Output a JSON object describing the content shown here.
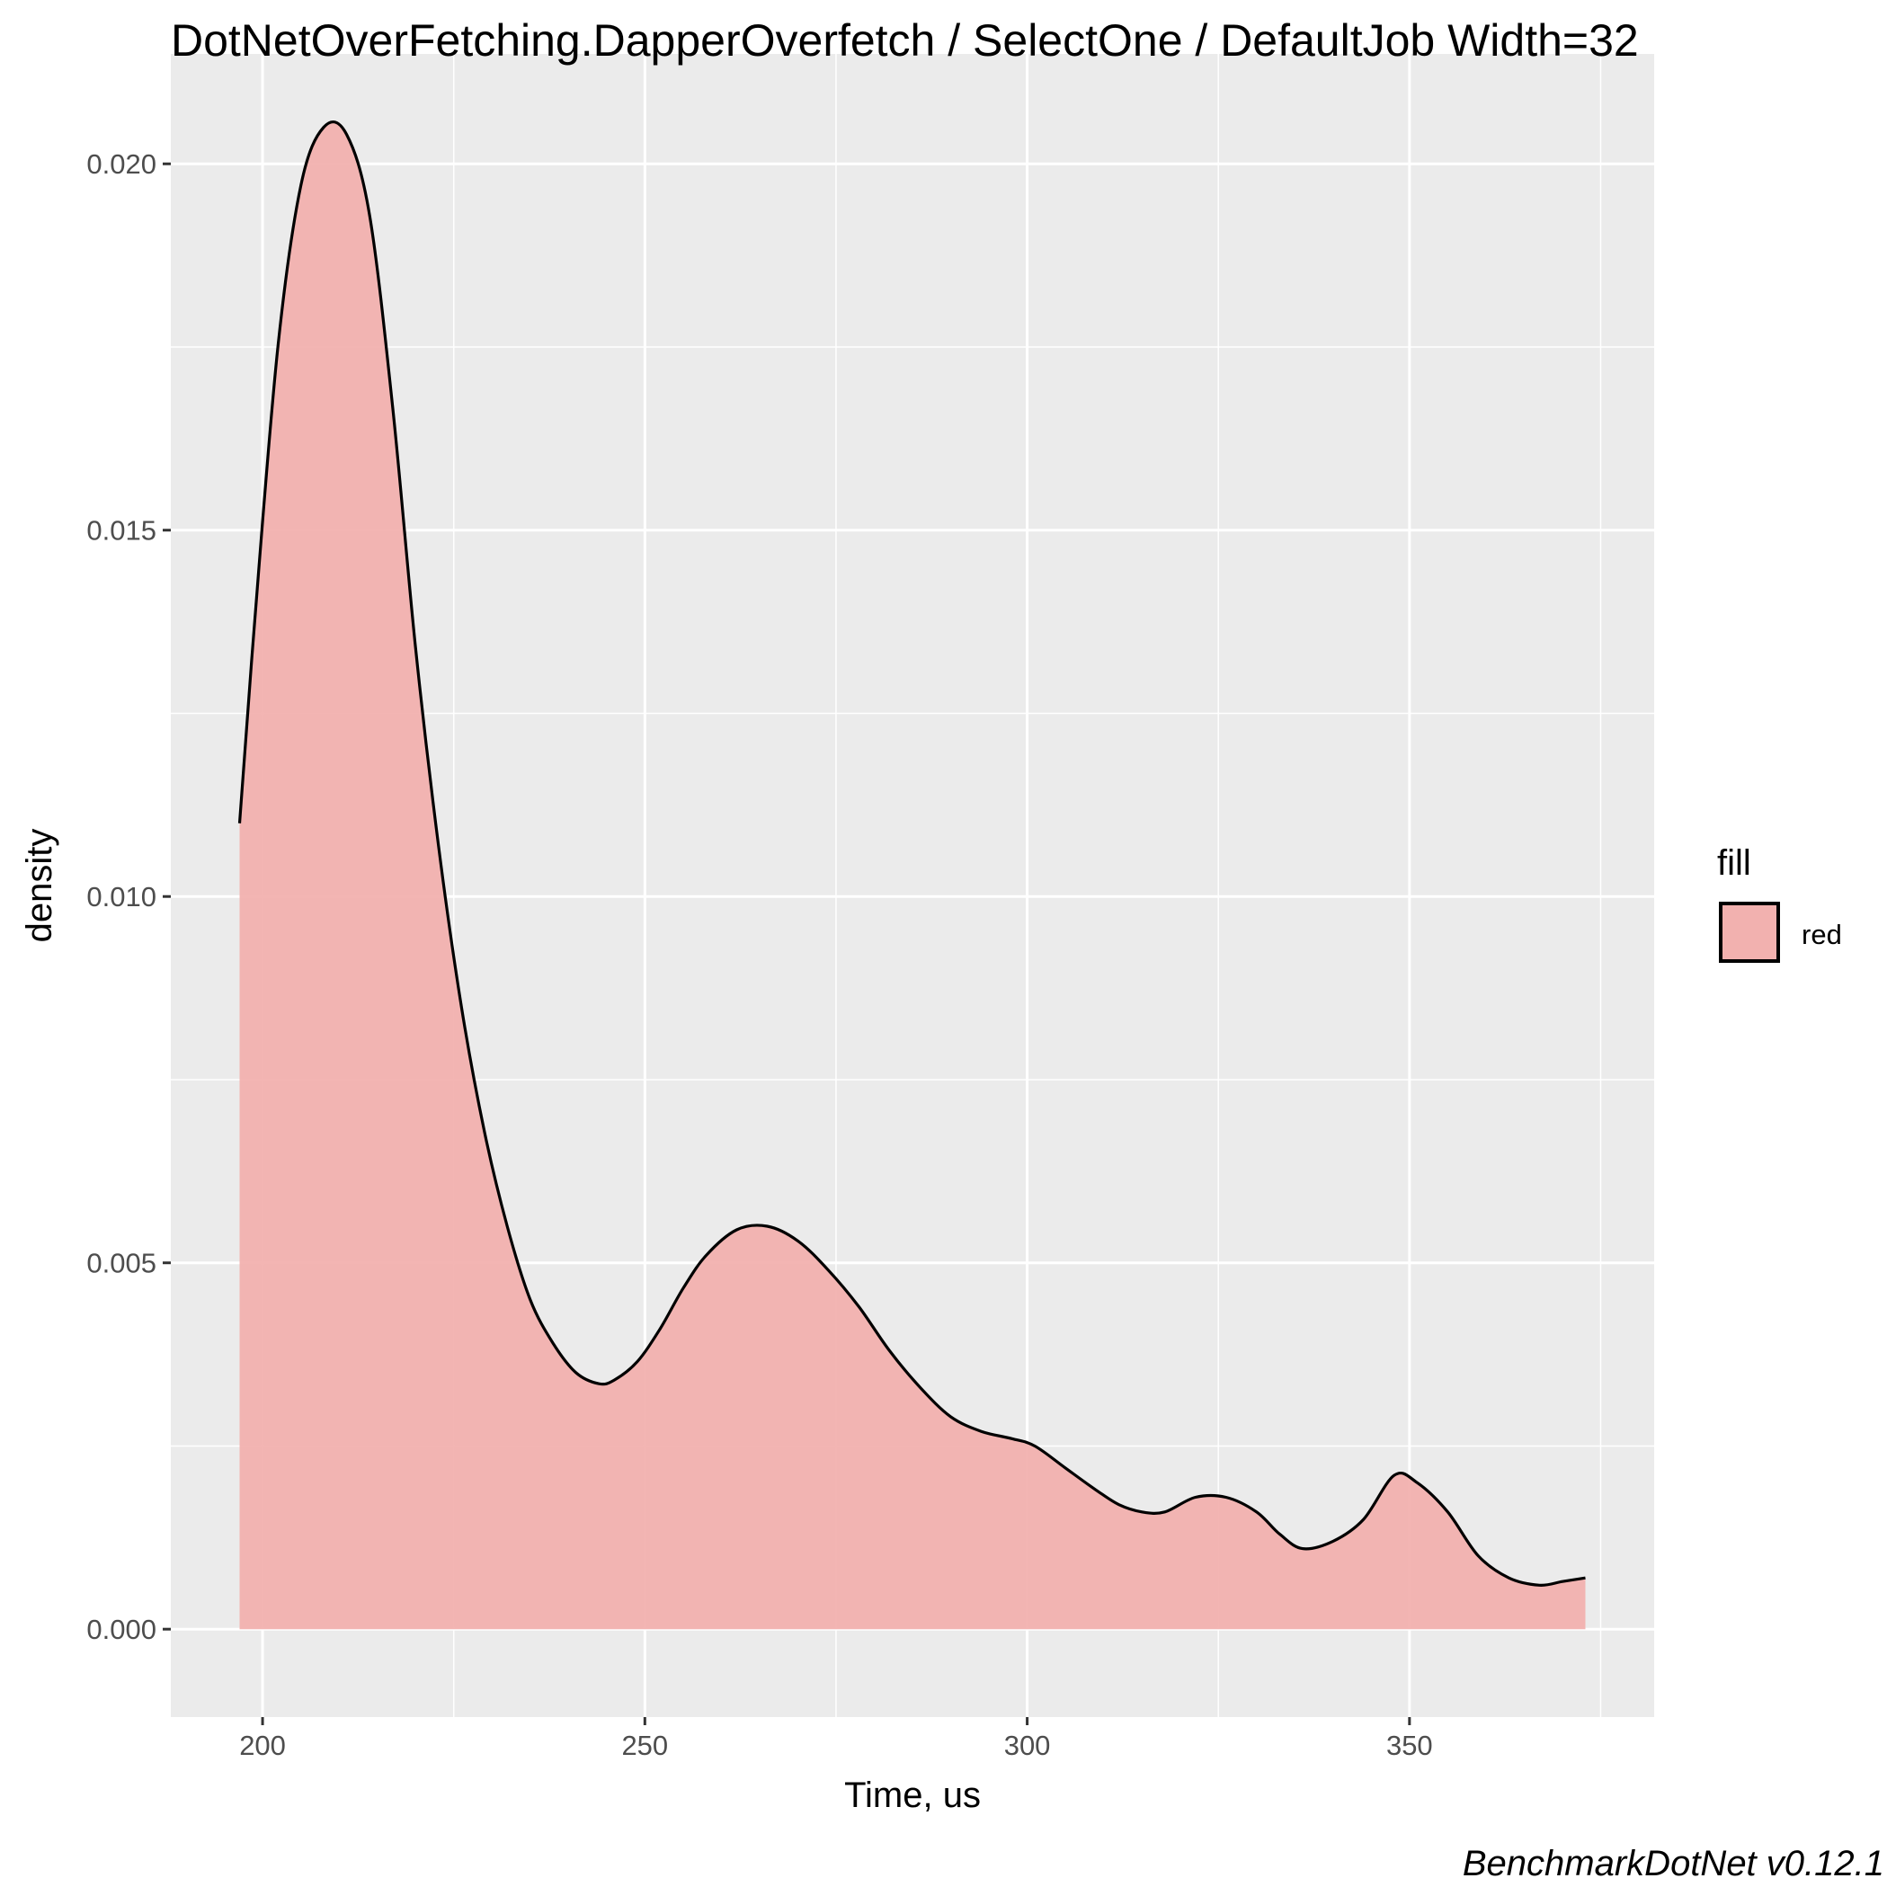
{
  "chart_data": {
    "type": "area",
    "title": "DotNetOverFetching.DapperOverfetch / SelectOne / DefaultJob Width=32",
    "xlabel": "Time, us",
    "ylabel": "density",
    "xlim": [
      188,
      382
    ],
    "ylim": [
      -0.0012,
      0.0215
    ],
    "x_ticks": [
      200,
      250,
      300,
      350
    ],
    "x_tick_labels": [
      "200",
      "250",
      "300",
      "350"
    ],
    "y_ticks": [
      0.0,
      0.005,
      0.01,
      0.015,
      0.02
    ],
    "y_tick_labels": [
      "0.000",
      "0.005",
      "0.010",
      "0.015",
      "0.020"
    ],
    "grid": true,
    "legend": {
      "title": "fill",
      "position": "right",
      "entries": [
        "red"
      ]
    },
    "caption": "BenchmarkDotNet v0.12.1",
    "fill_color": "#F2B1AF",
    "line_color": "#000000",
    "panel_color": "#EBEBEB",
    "series": [
      {
        "name": "red",
        "x": [
          197,
          199,
          202,
          205,
          208,
          211,
          214,
          217,
          220,
          223,
          226,
          229,
          232,
          235,
          238,
          241,
          244,
          246,
          249,
          252,
          255,
          258,
          262,
          266,
          270,
          274,
          278,
          282,
          286,
          290,
          294,
          298,
          301,
          305,
          309,
          312,
          315,
          318,
          322,
          326,
          330,
          333,
          336,
          340,
          344,
          348,
          351,
          355,
          359,
          363,
          367,
          370,
          373
        ],
        "y": [
          0.011,
          0.0138,
          0.0175,
          0.0197,
          0.0205,
          0.0204,
          0.0193,
          0.0167,
          0.0134,
          0.0107,
          0.0085,
          0.0068,
          0.0055,
          0.0045,
          0.0039,
          0.0035,
          0.00335,
          0.0034,
          0.00365,
          0.0041,
          0.00465,
          0.0051,
          0.00545,
          0.0055,
          0.0053,
          0.0049,
          0.0044,
          0.0038,
          0.0033,
          0.0029,
          0.0027,
          0.0026,
          0.0025,
          0.0022,
          0.0019,
          0.0017,
          0.0016,
          0.0016,
          0.0018,
          0.0018,
          0.0016,
          0.0013,
          0.0011,
          0.0012,
          0.0015,
          0.0021,
          0.002,
          0.0016,
          0.001,
          0.0007,
          0.0006,
          0.00065,
          0.0007
        ]
      }
    ]
  }
}
